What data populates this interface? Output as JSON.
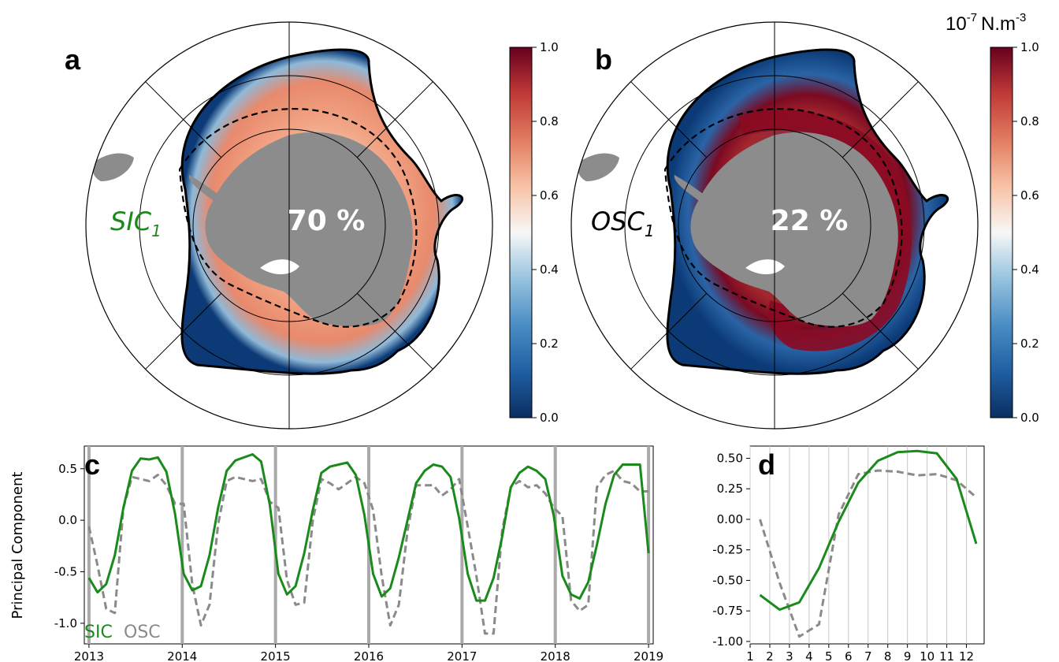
{
  "colors": {
    "sic": "#1a8a1a",
    "osc": "#8a8a8a",
    "land": "#8c8c8c",
    "year_line": "#aaaaaa",
    "month_line": "#c8c8c8",
    "cmap": [
      "#0b2e62",
      "#1f5fa3",
      "#4a8dc4",
      "#97c3df",
      "#f7f7f7",
      "#f8c2a5",
      "#e27c60",
      "#c03a37",
      "#67001f"
    ]
  },
  "panels": {
    "a": {
      "letter": "a",
      "pc_label": "SIC",
      "pc_sub": "1",
      "percent": "70 %",
      "colorbar_ticks": [
        "1.0",
        "0.8",
        "0.6",
        "0.4",
        "0.2",
        "0.0"
      ]
    },
    "b": {
      "letter": "b",
      "pc_label": "OSC",
      "pc_sub": "1",
      "percent": "22 %",
      "colorbar_ticks": [
        "1.0",
        "0.8",
        "0.6",
        "0.4",
        "0.2",
        "0.0"
      ],
      "unit_base": "10",
      "unit_exp": "-7",
      "unit_text": "N.m",
      "unit_exp2": "-3"
    },
    "c": {
      "letter": "c",
      "ylabel": "Principal Component",
      "legend_sic": "SIC",
      "legend_osc": "OSC"
    },
    "d": {
      "letter": "d"
    }
  },
  "chart_data": [
    {
      "panel": "c",
      "type": "line",
      "ylabel": "Principal Component",
      "xlim": [
        2012.95,
        2019.05
      ],
      "ylim": [
        -1.2,
        0.72
      ],
      "x_ticks": [
        "2013",
        "2014",
        "2015",
        "2016",
        "2017",
        "2018",
        "2019"
      ],
      "y_ticks": [
        "0.5",
        "0.0",
        "-0.5",
        "-1.0"
      ],
      "grid": "vertical lines at year boundaries",
      "legend": "bottom-left",
      "series": [
        {
          "name": "SIC",
          "values": [
            -0.56,
            -0.7,
            -0.62,
            -0.34,
            0.12,
            0.48,
            0.6,
            0.59,
            0.61,
            0.47,
            0.06,
            -0.52,
            -0.68,
            -0.64,
            -0.34,
            0.12,
            0.48,
            0.58,
            0.61,
            0.64,
            0.57,
            0.15,
            -0.52,
            -0.72,
            -0.64,
            -0.32,
            0.1,
            0.46,
            0.52,
            0.54,
            0.56,
            0.44,
            0.05,
            -0.52,
            -0.74,
            -0.66,
            -0.36,
            0.0,
            0.36,
            0.48,
            0.54,
            0.52,
            0.42,
            0.02,
            -0.52,
            -0.78,
            -0.78,
            -0.56,
            -0.16,
            0.32,
            0.46,
            0.52,
            0.48,
            0.4,
            0.04,
            -0.54,
            -0.72,
            -0.76,
            -0.6,
            -0.24,
            0.16,
            0.44,
            0.54,
            0.54,
            0.54,
            -0.32
          ]
        },
        {
          "name": "OSC",
          "values": [
            -0.06,
            -0.44,
            -0.86,
            -0.9,
            0.12,
            0.42,
            0.4,
            0.38,
            0.44,
            0.34,
            0.16,
            0.16,
            -0.62,
            -1.02,
            -0.82,
            -0.04,
            0.38,
            0.42,
            0.4,
            0.38,
            0.4,
            0.18,
            0.12,
            -0.58,
            -0.82,
            -0.8,
            0.0,
            0.4,
            0.36,
            0.3,
            0.36,
            0.42,
            0.36,
            0.1,
            -0.54,
            -1.02,
            -0.82,
            -0.1,
            0.34,
            0.34,
            0.34,
            0.24,
            0.3,
            0.4,
            -0.06,
            -0.54,
            -1.1,
            -1.1,
            -0.1,
            0.32,
            0.38,
            0.32,
            0.34,
            0.26,
            0.12,
            0.04,
            -0.78,
            -0.88,
            -0.82,
            0.32,
            0.44,
            0.48,
            0.38,
            0.36,
            0.28,
            0.28
          ]
        }
      ]
    },
    {
      "panel": "d",
      "type": "line",
      "categories": [
        "1",
        "2",
        "3",
        "4",
        "5",
        "6",
        "7",
        "8",
        "9",
        "10",
        "11",
        "12"
      ],
      "xlim": [
        1,
        12.9
      ],
      "ylim": [
        -1.02,
        0.6
      ],
      "y_ticks": [
        "0.50",
        "0.25",
        "0.00",
        "-0.25",
        "-0.50",
        "-0.75",
        "-1.00"
      ],
      "grid": "vertical lines at integer months",
      "series": [
        {
          "name": "SIC",
          "x": [
            1.5,
            2.5,
            3.5,
            4.5,
            5.5,
            6.5,
            7.5,
            8.5,
            9.5,
            10.5,
            11.5,
            12.5
          ],
          "values": [
            -0.62,
            -0.74,
            -0.68,
            -0.4,
            -0.02,
            0.3,
            0.48,
            0.55,
            0.56,
            0.54,
            0.33,
            -0.2
          ]
        },
        {
          "name": "OSC",
          "x": [
            1.5,
            2.5,
            3.5,
            4.5,
            5.5,
            6.5,
            7.5,
            8.5,
            9.5,
            10.5,
            11.5,
            12.5
          ],
          "values": [
            0.0,
            -0.52,
            -0.96,
            -0.86,
            0.04,
            0.37,
            0.4,
            0.39,
            0.36,
            0.37,
            0.32,
            0.18
          ]
        }
      ]
    }
  ]
}
